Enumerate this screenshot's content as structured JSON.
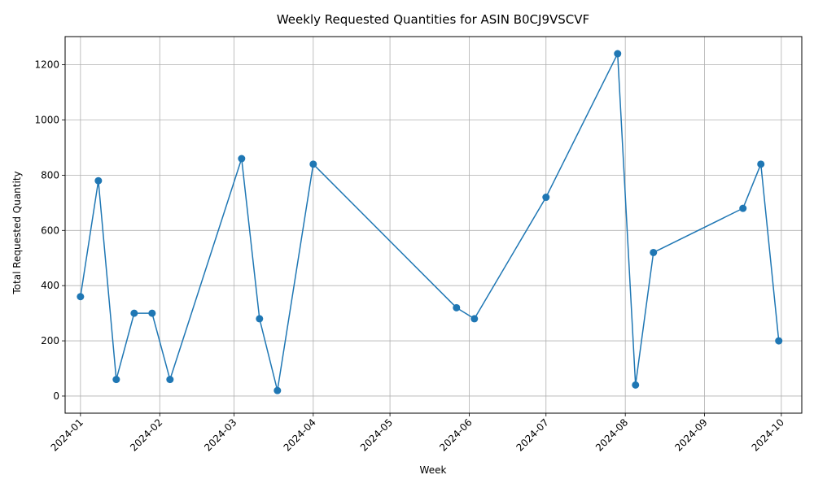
{
  "chart_data": {
    "type": "line",
    "title": "Weekly Requested Quantities for ASIN B0CJ9VSCVF",
    "xlabel": "Week",
    "ylabel": "Total Requested Quantity",
    "x_axis": "date",
    "xlim": [
      "2023-12-26",
      "2024-10-09"
    ],
    "ylim": [
      -62,
      1302
    ],
    "grid": true,
    "x_ticks": [
      "2024-01-01",
      "2024-02-01",
      "2024-03-01",
      "2024-04-01",
      "2024-05-01",
      "2024-06-01",
      "2024-07-01",
      "2024-08-01",
      "2024-09-01",
      "2024-10-01"
    ],
    "x_tick_labels": [
      "2024-01",
      "2024-02",
      "2024-03",
      "2024-04",
      "2024-05",
      "2024-06",
      "2024-07",
      "2024-08",
      "2024-09",
      "2024-10"
    ],
    "y_ticks": [
      0,
      200,
      400,
      600,
      800,
      1000,
      1200
    ],
    "y_tick_labels": [
      "0",
      "200",
      "400",
      "600",
      "800",
      "1000",
      "1200"
    ],
    "series": [
      {
        "color": "#1f77b4",
        "marker": "circle",
        "points": [
          {
            "x": "2024-01-01",
            "y": 360
          },
          {
            "x": "2024-01-08",
            "y": 780
          },
          {
            "x": "2024-01-15",
            "y": 60
          },
          {
            "x": "2024-01-22",
            "y": 300
          },
          {
            "x": "2024-01-29",
            "y": 300
          },
          {
            "x": "2024-02-05",
            "y": 60
          },
          {
            "x": "2024-03-04",
            "y": 860
          },
          {
            "x": "2024-03-11",
            "y": 280
          },
          {
            "x": "2024-03-18",
            "y": 20
          },
          {
            "x": "2024-04-01",
            "y": 840
          },
          {
            "x": "2024-05-27",
            "y": 320
          },
          {
            "x": "2024-06-03",
            "y": 280
          },
          {
            "x": "2024-07-01",
            "y": 720
          },
          {
            "x": "2024-07-29",
            "y": 1240
          },
          {
            "x": "2024-08-05",
            "y": 40
          },
          {
            "x": "2024-08-12",
            "y": 520
          },
          {
            "x": "2024-09-16",
            "y": 680
          },
          {
            "x": "2024-09-23",
            "y": 840
          },
          {
            "x": "2024-09-30",
            "y": 200
          }
        ]
      }
    ]
  }
}
